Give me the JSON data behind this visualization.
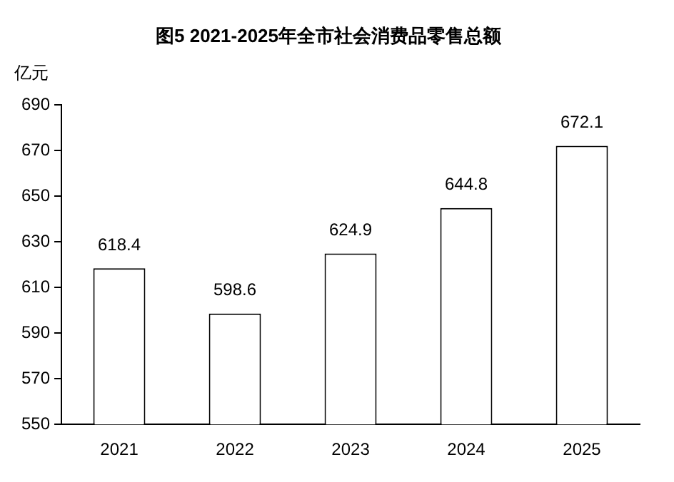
{
  "chart_data": {
    "type": "bar",
    "title": "图5 2021-2025年全市社会消费品零售总额",
    "ylabel": "亿元",
    "categories": [
      "2021",
      "2022",
      "2023",
      "2024",
      "2025"
    ],
    "values": [
      618.4,
      598.6,
      624.9,
      644.8,
      672.1
    ],
    "color": "#ffffff",
    "ylim": [
      550,
      690
    ],
    "yticks": [
      550,
      570,
      590,
      610,
      630,
      650,
      670,
      690
    ],
    "grid": false,
    "legend": false,
    "data_labels": true
  }
}
